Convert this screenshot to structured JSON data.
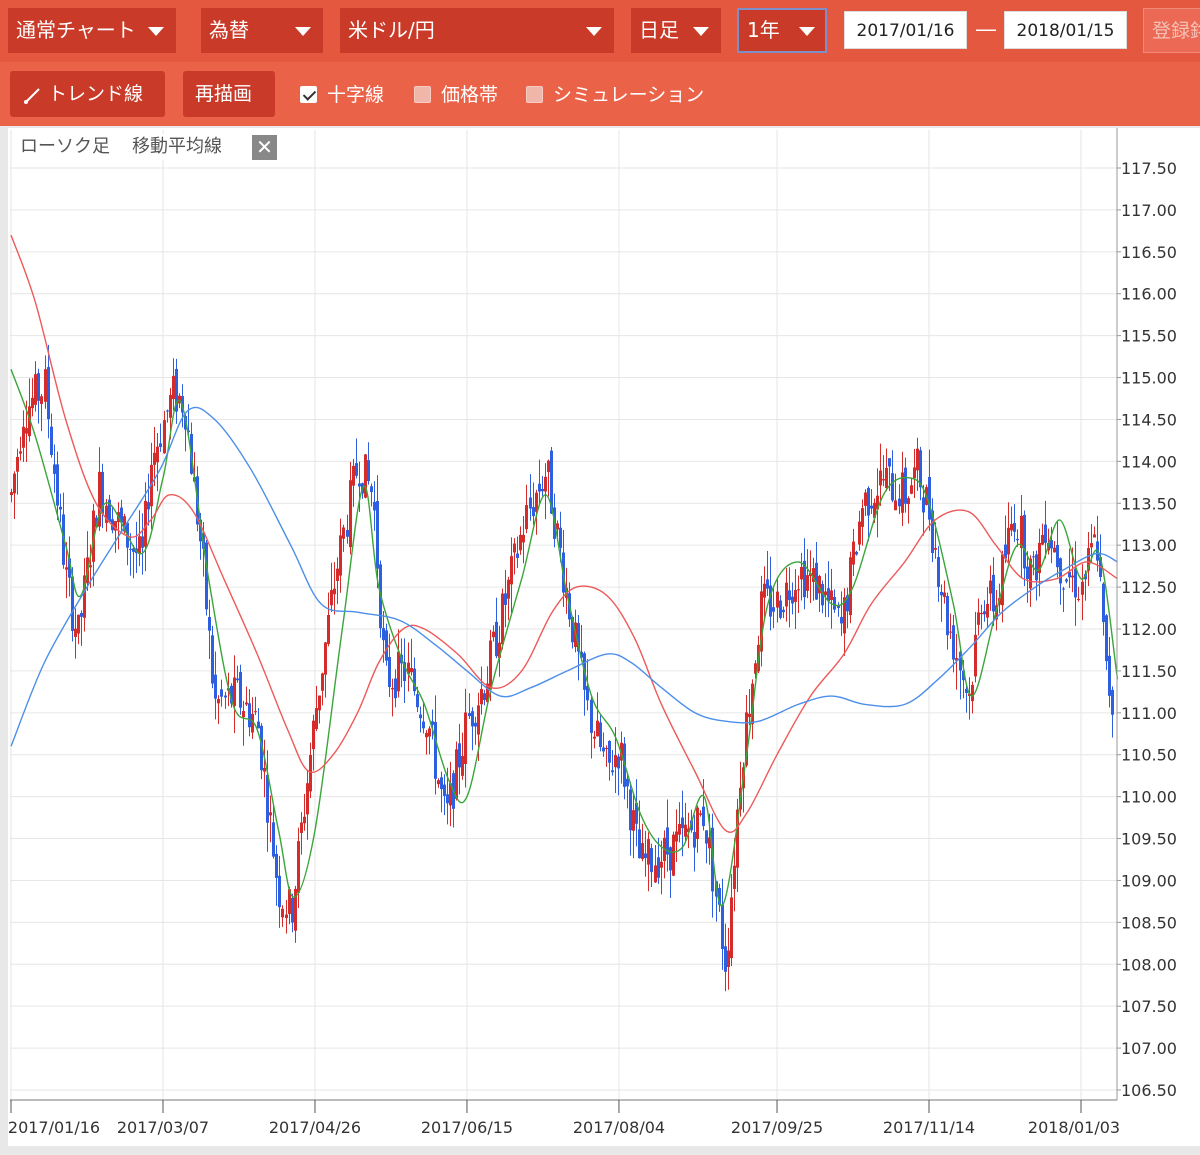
{
  "toolbar": {
    "chart_mode": "通常チャート",
    "asset_class": "為替",
    "pair": "米ドル/円",
    "interval": "日足",
    "range": "1年",
    "date_from": "2017/01/16",
    "date_sep": "―",
    "date_to": "2018/01/15",
    "register": "登録銘柄"
  },
  "toolbar2": {
    "trendline": "トレンド線",
    "redraw": "再描画",
    "crosshair": "十字線",
    "price_band": "価格帯",
    "simulation": "シミュレーション",
    "crosshair_checked": true,
    "price_band_checked": false,
    "simulation_checked": false
  },
  "legend": {
    "candles": "ローソク足",
    "moving_average": "移動平均線",
    "close": "✕"
  },
  "colors": {
    "toolbar_bg": "#e4583f",
    "up_candle": "#d42b2b",
    "down_candle": "#2d5fe0",
    "ma_short": "#3aa53a",
    "ma_mid": "#ee5a5a",
    "ma_long": "#4d8fe8"
  },
  "chart_data": {
    "type": "candlestick",
    "title": "",
    "xlabel": "",
    "ylabel": "",
    "ylim": [
      106.5,
      117.5
    ],
    "yticks": [
      "117.50",
      "117.00",
      "116.50",
      "116.00",
      "115.50",
      "115.00",
      "114.50",
      "114.00",
      "113.50",
      "113.00",
      "112.50",
      "112.00",
      "111.50",
      "111.00",
      "110.50",
      "110.00",
      "109.50",
      "109.00",
      "108.50",
      "108.00",
      "107.50",
      "107.00",
      "106.50"
    ],
    "xticks": [
      "2017/01/16",
      "2017/03/07",
      "2017/04/26",
      "2017/06/15",
      "2017/08/04",
      "2017/09/25",
      "2017/11/14",
      "2018/01/03"
    ],
    "grid": true,
    "close_path": [
      [
        "2017/01/16",
        113.6
      ],
      [
        "2017/01/20",
        114.6
      ],
      [
        "2017/01/27",
        114.9
      ],
      [
        "2017/02/03",
        112.6
      ],
      [
        "2017/02/07",
        111.9
      ],
      [
        "2017/02/14",
        113.7
      ],
      [
        "2017/02/21",
        113.2
      ],
      [
        "2017/02/28",
        112.8
      ],
      [
        "2017/03/03",
        114.0
      ],
      [
        "2017/03/10",
        114.8
      ],
      [
        "2017/03/14",
        114.7
      ],
      [
        "2017/03/20",
        112.8
      ],
      [
        "2017/03/24",
        111.1
      ],
      [
        "2017/03/31",
        111.2
      ],
      [
        "2017/04/07",
        110.9
      ],
      [
        "2017/04/14",
        108.9
      ],
      [
        "2017/04/18",
        108.6
      ],
      [
        "2017/04/26",
        111.0
      ],
      [
        "2017/05/03",
        112.7
      ],
      [
        "2017/05/10",
        114.0
      ],
      [
        "2017/05/15",
        113.6
      ],
      [
        "2017/05/19",
        111.4
      ],
      [
        "2017/05/26",
        111.5
      ],
      [
        "2017/06/02",
        110.9
      ],
      [
        "2017/06/08",
        109.7
      ],
      [
        "2017/06/15",
        110.9
      ],
      [
        "2017/06/21",
        111.4
      ],
      [
        "2017/06/28",
        112.4
      ],
      [
        "2017/07/04",
        113.3
      ],
      [
        "2017/07/11",
        113.9
      ],
      [
        "2017/07/17",
        112.6
      ],
      [
        "2017/07/24",
        111.1
      ],
      [
        "2017/07/31",
        110.3
      ],
      [
        "2017/08/04",
        110.6
      ],
      [
        "2017/08/11",
        109.2
      ],
      [
        "2017/08/18",
        109.3
      ],
      [
        "2017/08/25",
        109.5
      ],
      [
        "2017/09/01",
        109.8
      ],
      [
        "2017/09/08",
        108.0
      ],
      [
        "2017/09/13",
        110.4
      ],
      [
        "2017/09/20",
        112.3
      ],
      [
        "2017/09/25",
        112.3
      ],
      [
        "2017/10/02",
        112.7
      ],
      [
        "2017/10/09",
        112.5
      ],
      [
        "2017/10/16",
        112.0
      ],
      [
        "2017/10/23",
        113.5
      ],
      [
        "2017/10/30",
        113.8
      ],
      [
        "2017/11/06",
        113.6
      ],
      [
        "2017/11/10",
        113.9
      ],
      [
        "2017/11/14",
        113.4
      ],
      [
        "2017/11/20",
        112.1
      ],
      [
        "2017/11/27",
        111.2
      ],
      [
        "2017/12/01",
        112.4
      ],
      [
        "2017/12/06",
        112.3
      ],
      [
        "2017/12/12",
        113.4
      ],
      [
        "2017/12/18",
        112.6
      ],
      [
        "2017/12/22",
        113.3
      ],
      [
        "2017/12/28",
        112.7
      ],
      [
        "2018/01/03",
        112.5
      ],
      [
        "2018/01/08",
        113.1
      ],
      [
        "2018/01/11",
        111.5
      ],
      [
        "2018/01/15",
        110.8
      ]
    ],
    "series": [
      {
        "key": "ma_short",
        "points": [
          [
            "2017/01/16",
            115.1
          ],
          [
            "2017/01/24",
            114.3
          ],
          [
            "2017/02/03",
            113.0
          ],
          [
            "2017/02/08",
            112.4
          ],
          [
            "2017/02/16",
            113.5
          ],
          [
            "2017/02/28",
            112.9
          ],
          [
            "2017/03/07",
            113.8
          ],
          [
            "2017/03/13",
            114.7
          ],
          [
            "2017/03/22",
            112.6
          ],
          [
            "2017/03/30",
            111.1
          ],
          [
            "2017/04/07",
            110.8
          ],
          [
            "2017/04/14",
            109.6
          ],
          [
            "2017/04/19",
            108.8
          ],
          [
            "2017/04/26",
            109.6
          ],
          [
            "2017/05/05",
            112.0
          ],
          [
            "2017/05/12",
            113.7
          ],
          [
            "2017/05/17",
            112.5
          ],
          [
            "2017/05/25",
            111.6
          ],
          [
            "2017/06/01",
            111.1
          ],
          [
            "2017/06/09",
            110.2
          ],
          [
            "2017/06/15",
            110.0
          ],
          [
            "2017/06/23",
            111.3
          ],
          [
            "2017/07/03",
            112.6
          ],
          [
            "2017/07/11",
            113.6
          ],
          [
            "2017/07/18",
            112.4
          ],
          [
            "2017/07/26",
            111.2
          ],
          [
            "2017/08/03",
            110.7
          ],
          [
            "2017/08/11",
            109.8
          ],
          [
            "2017/08/18",
            109.4
          ],
          [
            "2017/08/25",
            109.4
          ],
          [
            "2017/09/01",
            110.0
          ],
          [
            "2017/09/07",
            108.7
          ],
          [
            "2017/09/15",
            110.5
          ],
          [
            "2017/09/22",
            112.3
          ],
          [
            "2017/10/02",
            112.8
          ],
          [
            "2017/10/13",
            112.3
          ],
          [
            "2017/10/20",
            112.5
          ],
          [
            "2017/10/30",
            113.6
          ],
          [
            "2017/11/08",
            113.8
          ],
          [
            "2017/11/14",
            113.5
          ],
          [
            "2017/11/22",
            112.3
          ],
          [
            "2017/11/28",
            111.2
          ],
          [
            "2017/12/06",
            112.2
          ],
          [
            "2017/12/13",
            113.0
          ],
          [
            "2017/12/20",
            112.7
          ],
          [
            "2017/12/27",
            113.3
          ],
          [
            "2018/01/03",
            112.6
          ],
          [
            "2018/01/09",
            112.9
          ],
          [
            "2018/01/15",
            111.4
          ]
        ]
      },
      {
        "key": "ma_mid",
        "points": [
          [
            "2017/01/16",
            116.7
          ],
          [
            "2017/01/24",
            115.9
          ],
          [
            "2017/02/03",
            114.5
          ],
          [
            "2017/02/13",
            113.5
          ],
          [
            "2017/02/24",
            113.1
          ],
          [
            "2017/03/03",
            113.3
          ],
          [
            "2017/03/09",
            113.6
          ],
          [
            "2017/03/17",
            113.4
          ],
          [
            "2017/03/27",
            112.6
          ],
          [
            "2017/04/07",
            111.7
          ],
          [
            "2017/04/17",
            110.8
          ],
          [
            "2017/04/24",
            110.3
          ],
          [
            "2017/05/02",
            110.5
          ],
          [
            "2017/05/10",
            111.0
          ],
          [
            "2017/05/17",
            111.6
          ],
          [
            "2017/05/25",
            112.0
          ],
          [
            "2017/06/01",
            112.0
          ],
          [
            "2017/06/12",
            111.7
          ],
          [
            "2017/06/23",
            111.3
          ],
          [
            "2017/07/03",
            111.5
          ],
          [
            "2017/07/13",
            112.2
          ],
          [
            "2017/07/21",
            112.5
          ],
          [
            "2017/07/31",
            112.4
          ],
          [
            "2017/08/09",
            111.9
          ],
          [
            "2017/08/18",
            111.1
          ],
          [
            "2017/08/29",
            110.3
          ],
          [
            "2017/09/08",
            109.6
          ],
          [
            "2017/09/15",
            109.8
          ],
          [
            "2017/09/25",
            110.5
          ],
          [
            "2017/10/06",
            111.2
          ],
          [
            "2017/10/17",
            111.7
          ],
          [
            "2017/10/26",
            112.3
          ],
          [
            "2017/11/06",
            112.8
          ],
          [
            "2017/11/16",
            113.3
          ],
          [
            "2017/11/27",
            113.4
          ],
          [
            "2017/12/06",
            113.0
          ],
          [
            "2017/12/15",
            112.6
          ],
          [
            "2017/12/26",
            112.6
          ],
          [
            "2018/01/05",
            112.8
          ],
          [
            "2018/01/15",
            112.6
          ]
        ]
      },
      {
        "key": "ma_long",
        "points": [
          [
            "2017/01/16",
            110.6
          ],
          [
            "2017/01/27",
            111.6
          ],
          [
            "2017/02/10",
            112.5
          ],
          [
            "2017/02/22",
            113.2
          ],
          [
            "2017/03/06",
            113.9
          ],
          [
            "2017/03/15",
            114.6
          ],
          [
            "2017/03/24",
            114.5
          ],
          [
            "2017/04/05",
            113.9
          ],
          [
            "2017/04/18",
            113.0
          ],
          [
            "2017/04/28",
            112.3
          ],
          [
            "2017/05/10",
            112.2
          ],
          [
            "2017/05/24",
            112.1
          ],
          [
            "2017/06/05",
            111.8
          ],
          [
            "2017/06/15",
            111.5
          ],
          [
            "2017/06/26",
            111.2
          ],
          [
            "2017/07/06",
            111.3
          ],
          [
            "2017/07/18",
            111.5
          ],
          [
            "2017/07/31",
            111.7
          ],
          [
            "2017/08/08",
            111.6
          ],
          [
            "2017/08/18",
            111.3
          ],
          [
            "2017/08/29",
            111.0
          ],
          [
            "2017/09/08",
            110.9
          ],
          [
            "2017/09/19",
            110.9
          ],
          [
            "2017/10/02",
            111.1
          ],
          [
            "2017/10/13",
            111.2
          ],
          [
            "2017/10/24",
            111.1
          ],
          [
            "2017/11/06",
            111.1
          ],
          [
            "2017/11/17",
            111.4
          ],
          [
            "2017/11/28",
            111.8
          ],
          [
            "2017/12/08",
            112.2
          ],
          [
            "2017/12/19",
            112.5
          ],
          [
            "2017/12/28",
            112.7
          ],
          [
            "2018/01/08",
            112.9
          ],
          [
            "2018/01/15",
            112.8
          ]
        ]
      }
    ]
  }
}
